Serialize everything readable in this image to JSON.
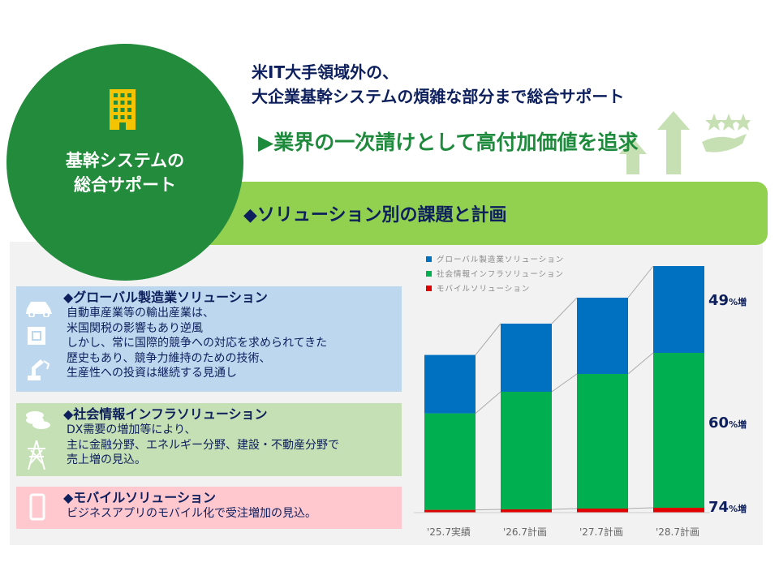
{
  "hero": {
    "title_line1": "基幹システムの",
    "title_line2": "総合サポート",
    "icon": "building-icon"
  },
  "headline": {
    "line1": "米IT大手領域外の、",
    "line2": "大企業基幹システムの煩雑な部分まで総合サポート"
  },
  "tagline": "▶業界の一次請けとして高付加価値を追求",
  "section_title": "◆ソリューション別の課題と計画",
  "solutions": [
    {
      "title": "◆グローバル製造業ソリューション",
      "lines": [
        "自動車産業等の輸出産業は、",
        "米国関税の影響もあり逆風",
        "しかし、常に国際的競争への対応を求められてきた",
        "歴史もあり、競争力維持のための技術、",
        "生産性への投資は継続する見通し"
      ],
      "icons": [
        "car-icon",
        "chip-icon",
        "robot-arm-icon"
      ],
      "color": "#bdd7ee"
    },
    {
      "title": "◆社会情報インフラソリューション",
      "lines": [
        "DX需要の増加等により、",
        "主に金融分野、エネルギー分野、建設・不動産分野で",
        "売上増の見込。"
      ],
      "icons": [
        "coins-icon",
        "power-tower-icon"
      ],
      "color": "#c5e0b4"
    },
    {
      "title": "◆モバイルソリューション",
      "lines": [
        "ビジネスアプリのモバイル化で受注増加の見込。"
      ],
      "icons": [
        "smartphone-icon"
      ],
      "color": "#ffc7ce"
    }
  ],
  "chart_data": {
    "type": "bar",
    "stacked": true,
    "categories": [
      "'25.7実績",
      "'26.7計画",
      "'27.7計画",
      "'28.7計画"
    ],
    "series": [
      {
        "name": "モバイルソリューション",
        "color": "#e00000",
        "values": [
          3.4,
          4,
          5,
          6
        ]
      },
      {
        "name": "社会情報インフラソリューション",
        "color": "#00b050",
        "values": [
          119,
          145,
          166,
          191
        ]
      },
      {
        "name": "グローバル製造業ソリューション",
        "color": "#0070c0",
        "values": [
          72,
          84,
          94,
          107
        ]
      }
    ],
    "legend_order": [
      "グローバル製造業ソリューション",
      "社会情報インフラソリューション",
      "モバイルソリューション"
    ],
    "legend": "top-left",
    "y_axis_shown": false,
    "annotations": [
      {
        "series": "グローバル製造業ソリューション",
        "value": "49",
        "unit": "%増"
      },
      {
        "series": "社会情報インフラソリューション",
        "value": "60",
        "unit": "%増"
      },
      {
        "series": "モバイルソリューション",
        "value": "74",
        "unit": "%増"
      }
    ]
  }
}
